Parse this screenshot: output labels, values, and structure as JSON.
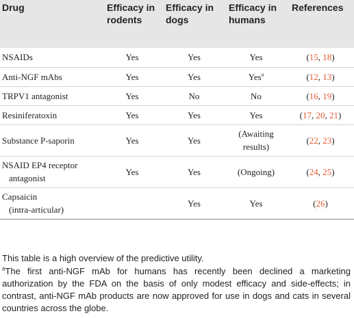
{
  "table": {
    "headers": [
      "Drug",
      "Efficacy in rodents",
      "Efficacy in dogs",
      "Efficacy in humans",
      "References"
    ],
    "rows": [
      {
        "drug": [
          "NSAIDs"
        ],
        "rodents": "Yes",
        "dogs": "Yes",
        "humans": "Yes",
        "humans_sup": "",
        "refs": [
          "15",
          "18"
        ]
      },
      {
        "drug": [
          "Anti-NGF mAbs"
        ],
        "rodents": "Yes",
        "dogs": "Yes",
        "humans": "Yes",
        "humans_sup": "a",
        "refs": [
          "12",
          "13"
        ]
      },
      {
        "drug": [
          "TRPV1 antagonist"
        ],
        "rodents": "Yes",
        "dogs": "No",
        "humans": "No",
        "humans_sup": "",
        "refs": [
          "16",
          "19"
        ]
      },
      {
        "drug": [
          "Resiniferatoxin"
        ],
        "rodents": "Yes",
        "dogs": "Yes",
        "humans": "Yes",
        "humans_sup": "",
        "refs": [
          "17",
          "20",
          "21"
        ]
      },
      {
        "drug": [
          "Substance P-saporin"
        ],
        "rodents": "Yes",
        "dogs": "Yes",
        "humans": "(Awaiting results)",
        "humans_sup": "",
        "refs": [
          "22",
          "23"
        ]
      },
      {
        "drug": [
          "NSAID EP4 receptor",
          "antagonist"
        ],
        "rodents": "Yes",
        "dogs": "Yes",
        "humans": "(Ongoing)",
        "humans_sup": "",
        "refs": [
          "24",
          "25"
        ]
      },
      {
        "drug": [
          "Capsaicin",
          "(intra-articular)"
        ],
        "rodents": "",
        "dogs": "Yes",
        "humans": "Yes",
        "humans_sup": "",
        "refs": [
          "26"
        ]
      }
    ]
  },
  "footnotes": {
    "note": "This table is a high overview of the predictive utility.",
    "a_marker": "a",
    "a_text": "The first anti-NGF mAb for humans has recently been declined a marketing authorization by the FDA on the basis of only modest efficacy and side-effects; in contrast, anti-NGF mAb products are now approved for use in dogs and cats in several countries across the globe."
  },
  "colors": {
    "header_bg": "#e6e6e6",
    "reference_link": "#e2582f",
    "text": "#222222"
  }
}
